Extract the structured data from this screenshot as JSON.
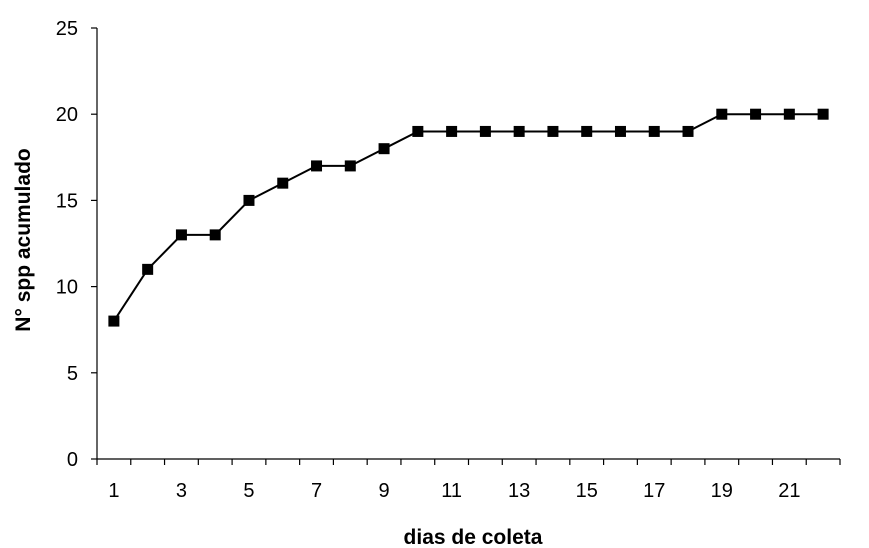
{
  "chart_data": {
    "type": "line",
    "xlabel": "dias de coleta",
    "ylabel": "N° spp acumulado",
    "x": [
      1,
      2,
      3,
      4,
      5,
      6,
      7,
      8,
      9,
      10,
      11,
      12,
      13,
      14,
      15,
      16,
      17,
      18,
      19,
      20,
      21,
      22
    ],
    "x_tick_labels": [
      "1",
      "3",
      "5",
      "7",
      "9",
      "11",
      "13",
      "15",
      "17",
      "19",
      "21"
    ],
    "series": [
      {
        "values": [
          8,
          11,
          13,
          13,
          15,
          16,
          17,
          17,
          18,
          19,
          19,
          19,
          19,
          19,
          19,
          19,
          19,
          19,
          20,
          20,
          20,
          20
        ],
        "color": "#000000",
        "marker": "square"
      }
    ],
    "ylim": [
      0,
      25
    ],
    "y_ticks": [
      0,
      5,
      10,
      15,
      20,
      25
    ],
    "grid": false,
    "legend": "none"
  }
}
